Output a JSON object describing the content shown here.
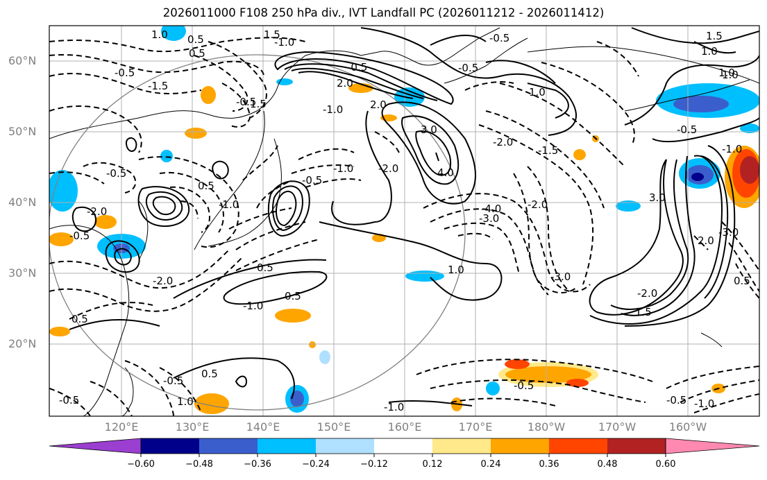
{
  "title": "2026011000 F108 250 hPa div., IVT Landfall PC (2026011212 - 2026011412)",
  "lat_labels": [
    "60°N",
    "50°N",
    "40°N",
    "30°N",
    "20°N"
  ],
  "lon_labels": [
    "120°E",
    "130°E",
    "140°E",
    "150°E",
    "160°E",
    "170°E",
    "180°W",
    "170°W",
    "160°W"
  ],
  "colorbar": {
    "ticks": [
      "−0.60",
      "−0.48",
      "−0.36",
      "−0.24",
      "−0.12",
      "0.12",
      "0.24",
      "0.36",
      "0.48",
      "0.60"
    ],
    "colors": [
      "#9a3fd0",
      "#00008b",
      "#3a5fcd",
      "#00bfff",
      "#b0e0ff",
      "#ffffff",
      "#ffe98a",
      "#ffa500",
      "#ff4500",
      "#b22222",
      "#ff89b0"
    ]
  },
  "contour_labels": [
    "0.5",
    "1.5",
    "1.0",
    "0.5",
    "-1.0",
    "-0.5",
    "2.0",
    "-0.5",
    "-1.0",
    "-1.5",
    "-0.5",
    "1.0",
    "1.5",
    "2.0",
    "3.0",
    "4.0",
    "-1.5",
    "-3.0",
    "-4.0",
    "-1.0",
    "-2.0",
    "-3.0",
    "-2.0",
    "1.0",
    "-1.0",
    "0.5",
    "-0.5",
    "-1.0",
    "0.5",
    "1.0",
    "0.5",
    "-2.0",
    "-0.5",
    "0.5",
    "1.0",
    "3.0",
    "2.0",
    "1.5",
    "-2.0",
    "-2.0",
    "-3.0",
    "0.5",
    "-0.5",
    "-0.5",
    "1.0",
    "0.5",
    "-0.5",
    "-0.5",
    "-0.5",
    "-1.0",
    "-0.5",
    "-1.0",
    "1.0",
    "1.5",
    "-0.5",
    "-2.0",
    "-0.5",
    "-1.0"
  ]
}
